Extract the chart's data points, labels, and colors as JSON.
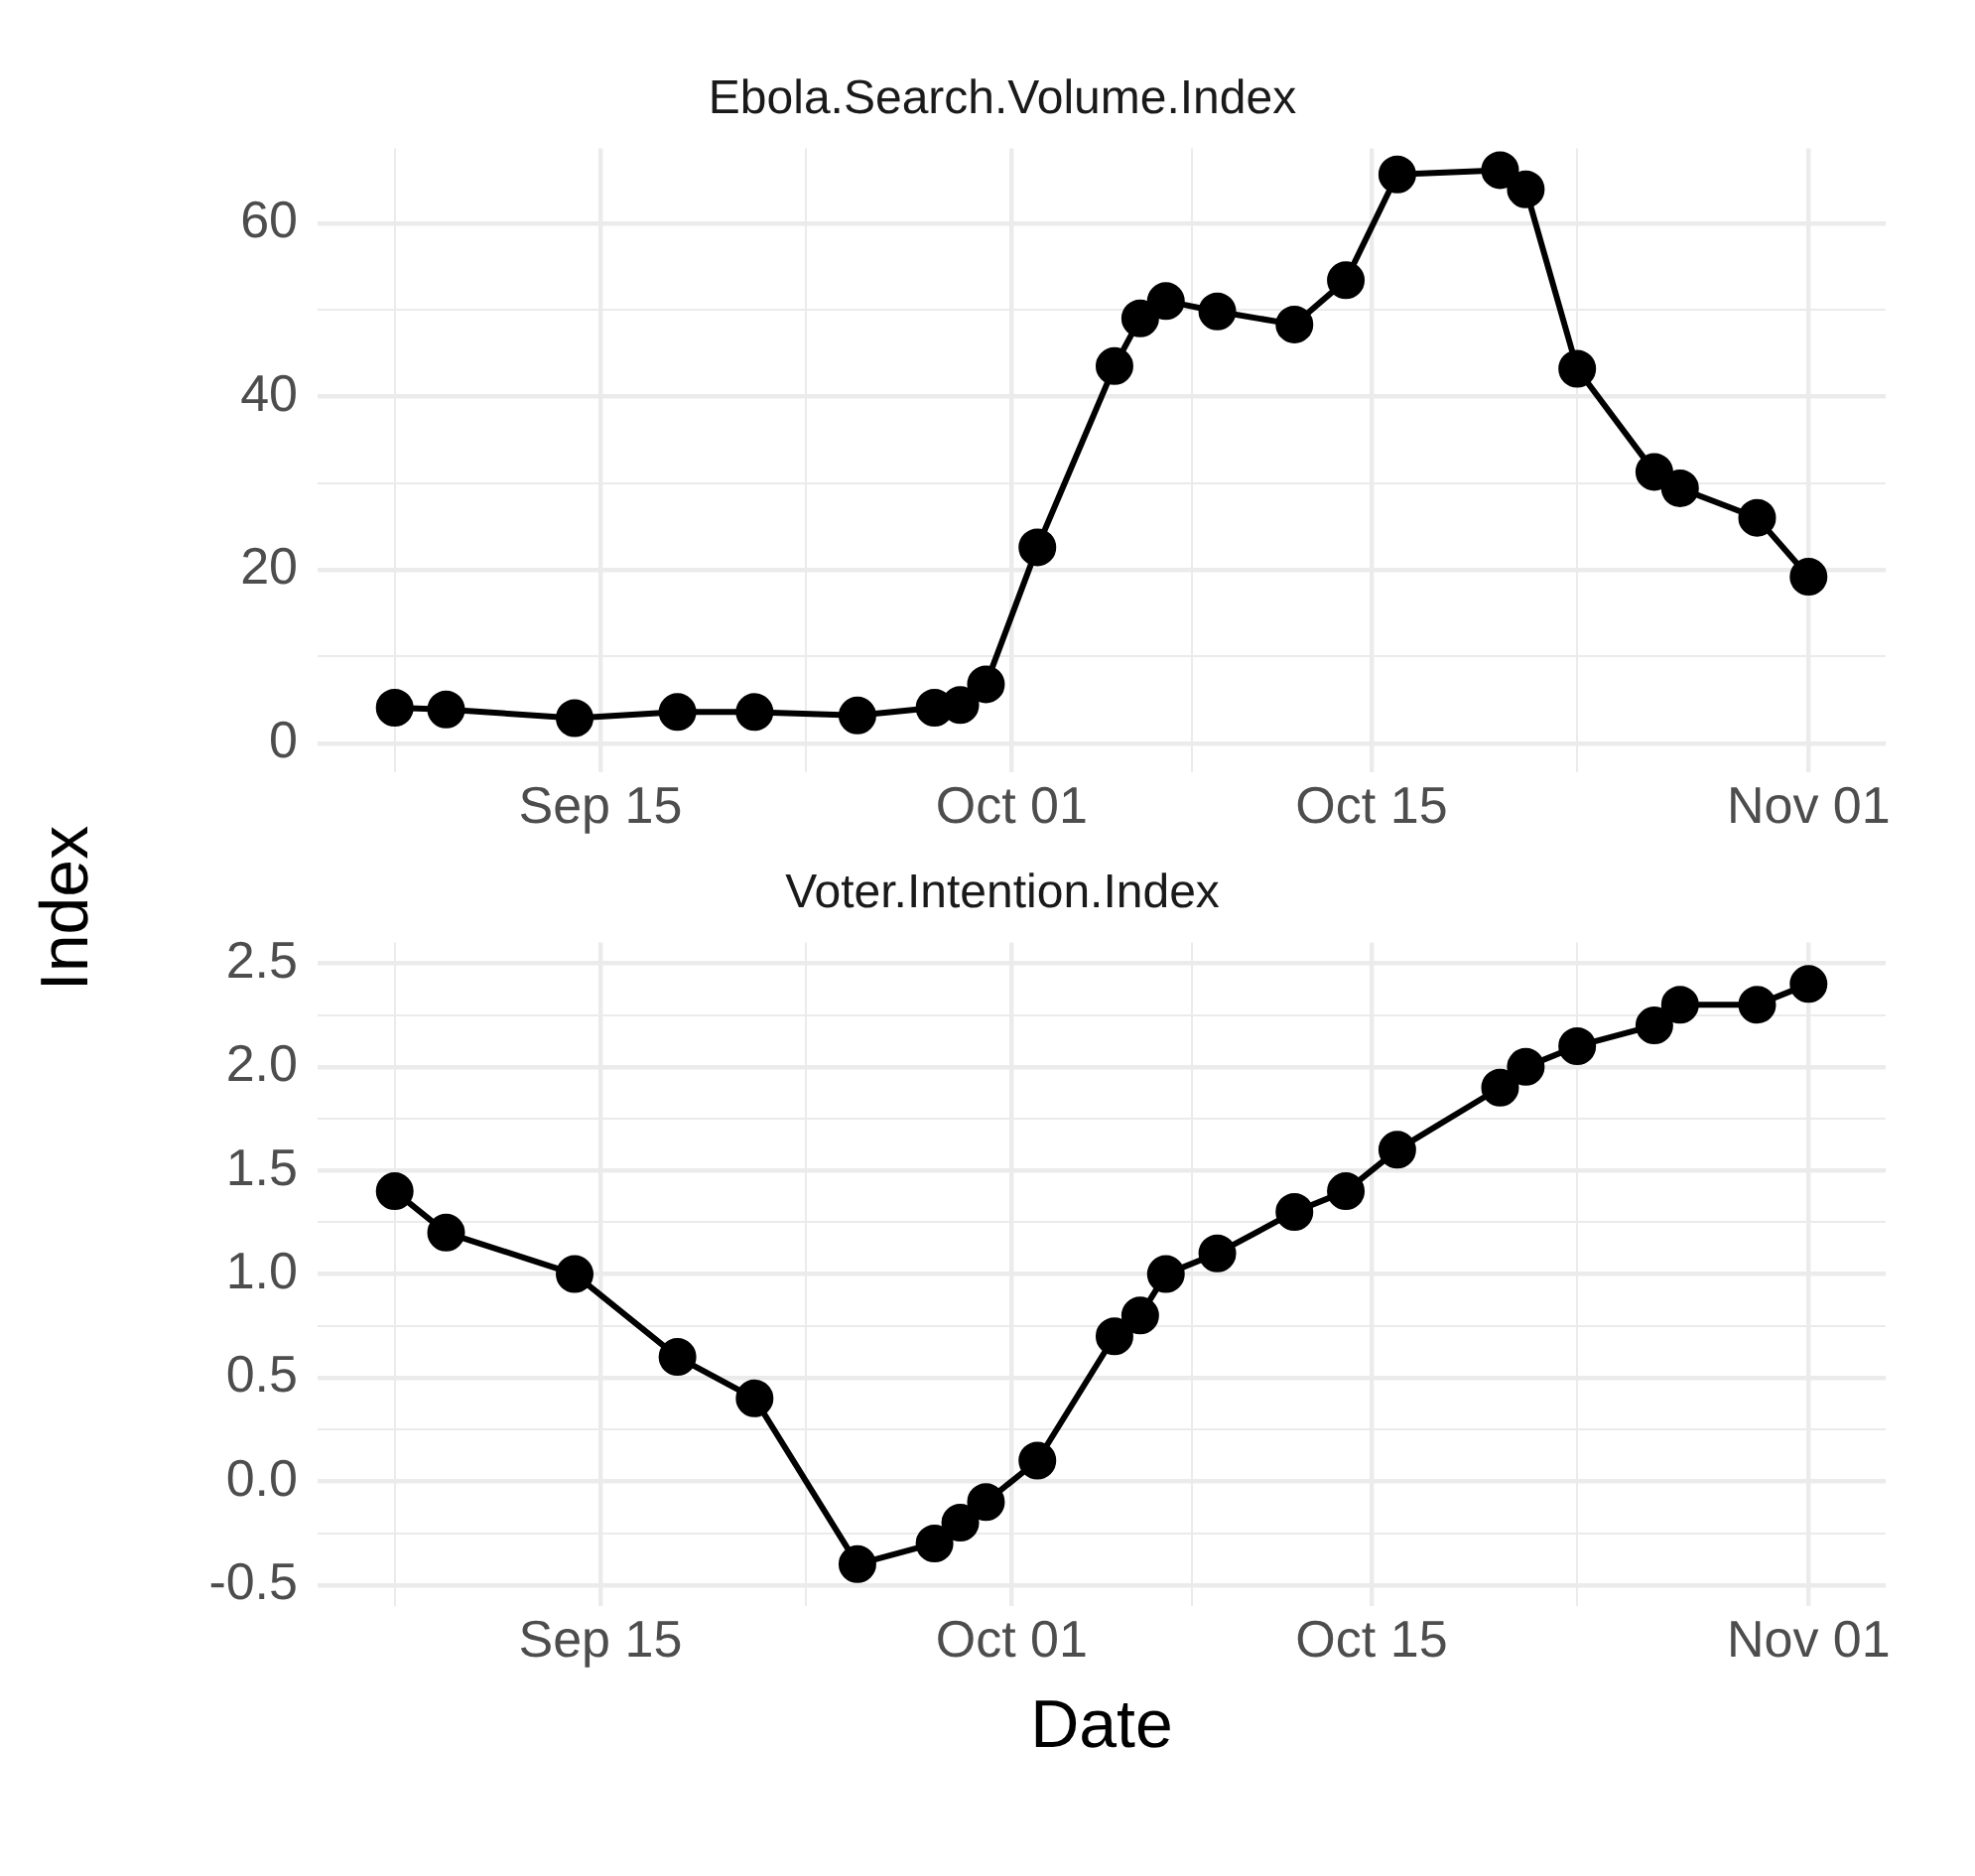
{
  "chart_data": [
    {
      "type": "line",
      "title": "Ebola.Search.Volume.Index",
      "ylabel": "Index",
      "marker": "circle",
      "line_style": "solid",
      "grid": true,
      "legend": false,
      "x": [
        "--09-07",
        "--09-09",
        "--09-14",
        "--09-18",
        "--09-21",
        "--09-25",
        "--09-28",
        "--09-29",
        "--09-30",
        "--10-02",
        "--10-05",
        "--10-06",
        "--10-07",
        "--10-09",
        "--10-12",
        "--10-14",
        "--10-16",
        "--10-20",
        "--10-21",
        "--10-23",
        "--10-26",
        "--10-27",
        "--10-30",
        "--11-01"
      ],
      "series": [
        {
          "color": "#000000",
          "values": [
            4.1,
            3.9,
            2.9,
            3.6,
            3.6,
            3.2,
            4.1,
            4.4,
            6.8,
            22.6,
            43.5,
            49,
            51,
            49.8,
            48.3,
            53.4,
            65.6,
            66.1,
            63.9,
            43.2,
            31.3,
            29.4,
            26,
            19.2
          ]
        }
      ],
      "xlim": [
        "--09-04",
        "--11-04"
      ],
      "xticks": [
        {
          "value": "--09-07",
          "label": null
        },
        {
          "value": "--09-15",
          "label": "Sep 15"
        },
        {
          "value": "--09-23",
          "label": null
        },
        {
          "value": "--10-01",
          "label": "Oct 01"
        },
        {
          "value": "--10-08",
          "label": null
        },
        {
          "value": "--10-15",
          "label": "Oct 15"
        },
        {
          "value": "--10-23",
          "label": null
        },
        {
          "value": "--11-01",
          "label": "Nov 01"
        }
      ],
      "ylim": [
        -3.3,
        68.6
      ],
      "yticks": [
        0,
        {
          "value": 10,
          "label": null
        },
        20,
        {
          "value": 30,
          "label": null
        },
        40,
        {
          "value": 50,
          "label": null
        },
        60
      ]
    },
    {
      "type": "line",
      "title": "Voter.Intention.Index",
      "xlabel": "Date",
      "marker": "circle",
      "line_style": "solid",
      "grid": true,
      "legend": false,
      "x": [
        "--09-07",
        "--09-09",
        "--09-14",
        "--09-18",
        "--09-21",
        "--09-25",
        "--09-28",
        "--09-29",
        "--09-30",
        "--10-02",
        "--10-05",
        "--10-06",
        "--10-07",
        "--10-09",
        "--10-12",
        "--10-14",
        "--10-16",
        "--10-20",
        "--10-21",
        "--10-23",
        "--10-26",
        "--10-27",
        "--10-30",
        "--11-01"
      ],
      "series": [
        {
          "color": "#000000",
          "values": [
            1.4,
            1.2,
            1.0,
            0.6,
            0.4,
            -0.4,
            -0.3,
            -0.2,
            -0.1,
            0.1,
            0.7,
            0.8,
            1.0,
            1.1,
            1.3,
            1.4,
            1.6,
            1.9,
            2.0,
            2.1,
            2.2,
            2.3,
            2.3,
            2.4
          ]
        }
      ],
      "xlim": [
        "--09-04",
        "--11-04"
      ],
      "xticks": [
        {
          "value": "--09-07",
          "label": null
        },
        {
          "value": "--09-15",
          "label": "Sep 15"
        },
        {
          "value": "--09-23",
          "label": null
        },
        {
          "value": "--10-01",
          "label": "Oct 01"
        },
        {
          "value": "--10-08",
          "label": null
        },
        {
          "value": "--10-15",
          "label": "Oct 15"
        },
        {
          "value": "--10-23",
          "label": null
        },
        {
          "value": "--11-01",
          "label": "Nov 01"
        }
      ],
      "ylim": [
        -0.6,
        2.6
      ],
      "yticks": [
        {
          "value": -0.5,
          "label": "-0.5"
        },
        {
          "value": -0.25,
          "label": null
        },
        {
          "value": 0,
          "label": "0.0"
        },
        {
          "value": 0.25,
          "label": null
        },
        {
          "value": 0.5,
          "label": "0.5"
        },
        {
          "value": 0.75,
          "label": null
        },
        {
          "value": 1,
          "label": "1.0"
        },
        {
          "value": 1.25,
          "label": null
        },
        {
          "value": 1.5,
          "label": "1.5"
        },
        {
          "value": 1.75,
          "label": null
        },
        {
          "value": 2,
          "label": "2.0"
        },
        {
          "value": 2.25,
          "label": null
        },
        {
          "value": 2.5,
          "label": "2.5"
        }
      ]
    }
  ]
}
